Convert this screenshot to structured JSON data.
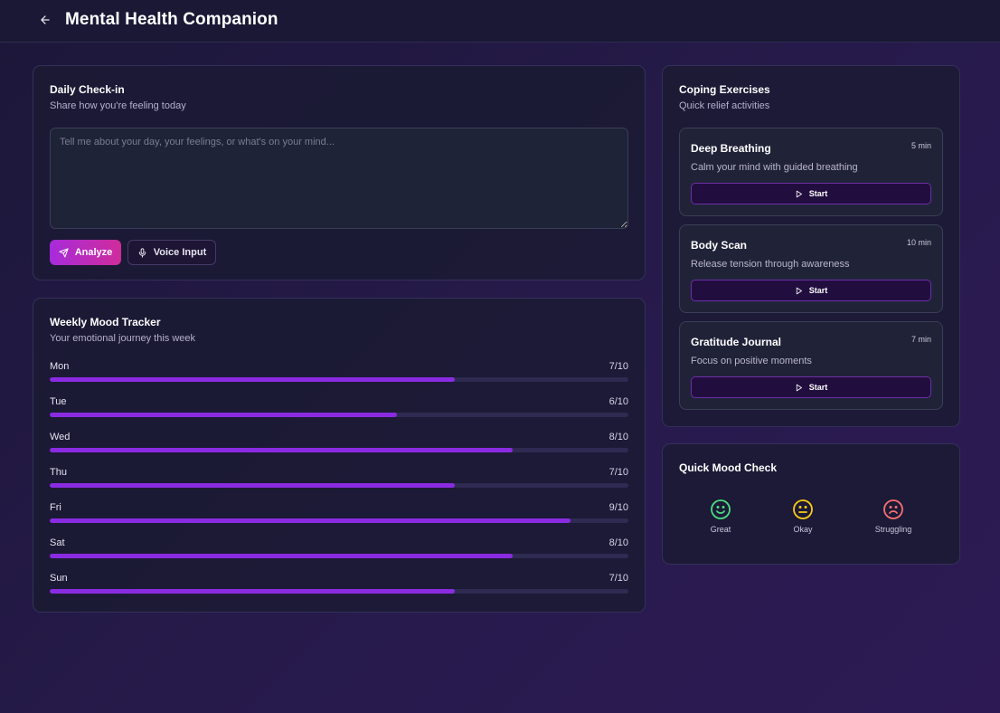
{
  "app": {
    "title": "Mental Health Companion"
  },
  "checkin": {
    "title": "Daily Check-in",
    "subtitle": "Share how you're feeling today",
    "placeholder": "Tell me about your day, your feelings, or what's on your mind...",
    "value": "",
    "analyze_label": "Analyze",
    "voice_label": "Voice Input"
  },
  "tracker": {
    "title": "Weekly Mood Tracker",
    "subtitle": "Your emotional journey this week",
    "days": [
      {
        "day": "Mon",
        "value_label": "7/10",
        "score": 7
      },
      {
        "day": "Tue",
        "value_label": "6/10",
        "score": 6
      },
      {
        "day": "Wed",
        "value_label": "8/10",
        "score": 8
      },
      {
        "day": "Thu",
        "value_label": "7/10",
        "score": 7
      },
      {
        "day": "Fri",
        "value_label": "9/10",
        "score": 9
      },
      {
        "day": "Sat",
        "value_label": "8/10",
        "score": 8
      },
      {
        "day": "Sun",
        "value_label": "7/10",
        "score": 7
      }
    ],
    "max": 10
  },
  "coping": {
    "title": "Coping Exercises",
    "subtitle": "Quick relief activities",
    "exercises": [
      {
        "name": "Deep Breathing",
        "duration": "5 min",
        "description": "Calm your mind with guided breathing",
        "start_label": "Start"
      },
      {
        "name": "Body Scan",
        "duration": "10 min",
        "description": "Release tension through awareness",
        "start_label": "Start"
      },
      {
        "name": "Gratitude Journal",
        "duration": "7 min",
        "description": "Focus on positive moments",
        "start_label": "Start"
      }
    ]
  },
  "quick": {
    "title": "Quick Mood Check",
    "options": [
      {
        "label": "Great",
        "icon": "smile-icon",
        "color": "#4ade80"
      },
      {
        "label": "Okay",
        "icon": "neutral-face-icon",
        "color": "#facc15"
      },
      {
        "label": "Struggling",
        "icon": "frown-icon",
        "color": "#f87171"
      }
    ]
  },
  "colors": {
    "accent": "#8a2be2",
    "analyze_gradient_start": "#a72bdb",
    "analyze_gradient_end": "#cf2c9a"
  }
}
